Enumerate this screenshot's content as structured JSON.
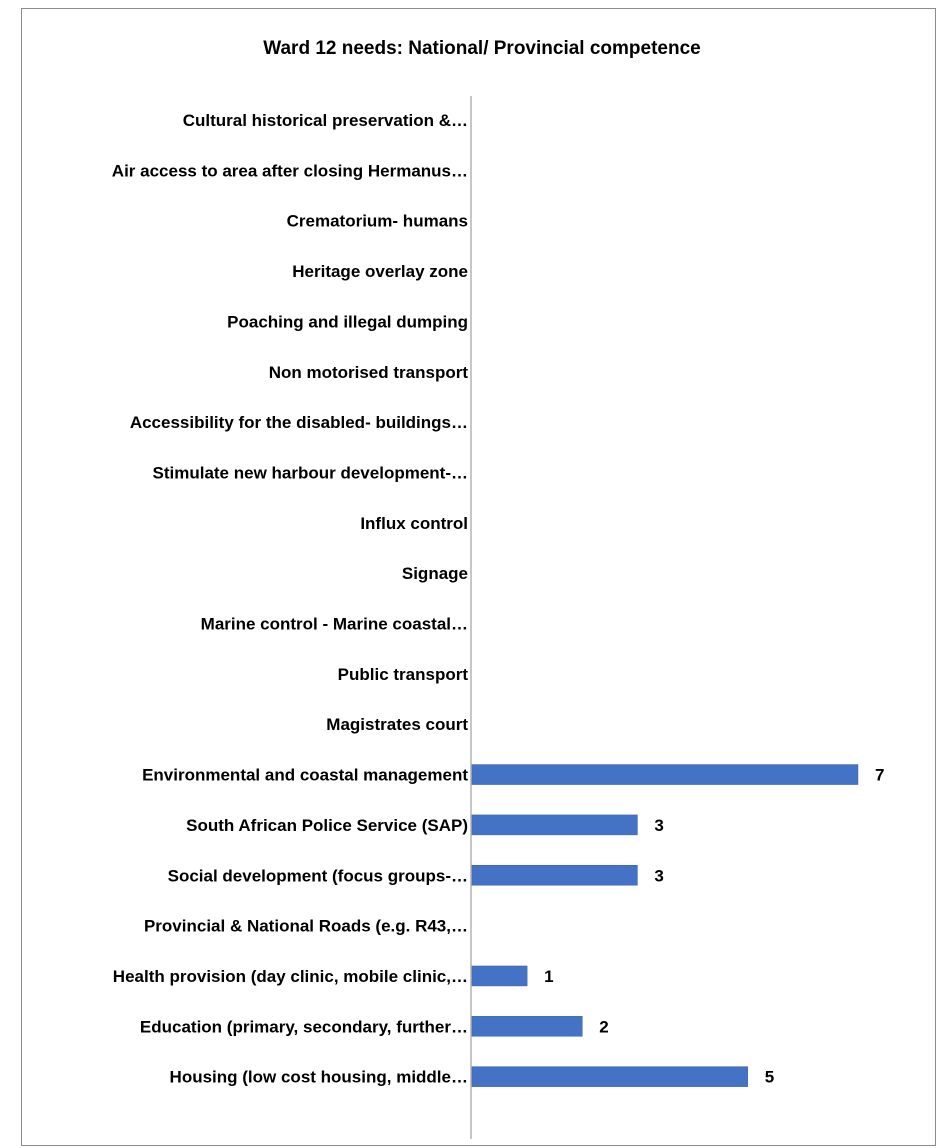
{
  "chart_data": {
    "type": "bar",
    "orientation": "horizontal",
    "title": "Ward 12 needs: National/ Provincial competence",
    "xlabel": "",
    "ylabel": "",
    "xlim": [
      0,
      7
    ],
    "grid": false,
    "legend": "none",
    "bar_color": "#4472C4",
    "categories": [
      "Cultural historical preservation &…",
      "Air access to area after closing Hermanus…",
      "Crematorium- humans",
      "Heritage overlay zone",
      "Poaching and illegal dumping",
      "Non motorised transport",
      "Accessibility for the disabled- buildings…",
      "Stimulate new harbour development-…",
      "Influx control",
      "Signage",
      "Marine control - Marine coastal…",
      "Public transport",
      "Magistrates court",
      "Environmental and coastal management",
      "South African Police Service (SAP)",
      "Social development (focus groups-…",
      "Provincial  & National Roads (e.g. R43,…",
      "Health provision (day clinic, mobile clinic,…",
      "Education (primary, secondary, further…",
      "Housing (low cost housing, middle…"
    ],
    "values": [
      null,
      null,
      null,
      null,
      null,
      null,
      null,
      null,
      null,
      null,
      null,
      null,
      null,
      7,
      3,
      3,
      null,
      1,
      2,
      5
    ],
    "data_labels": [
      "",
      "",
      "",
      "",
      "",
      "",
      "",
      "",
      "",
      "",
      "",
      "",
      "",
      "7",
      "3",
      "3",
      "",
      "1",
      "2",
      "5"
    ]
  }
}
